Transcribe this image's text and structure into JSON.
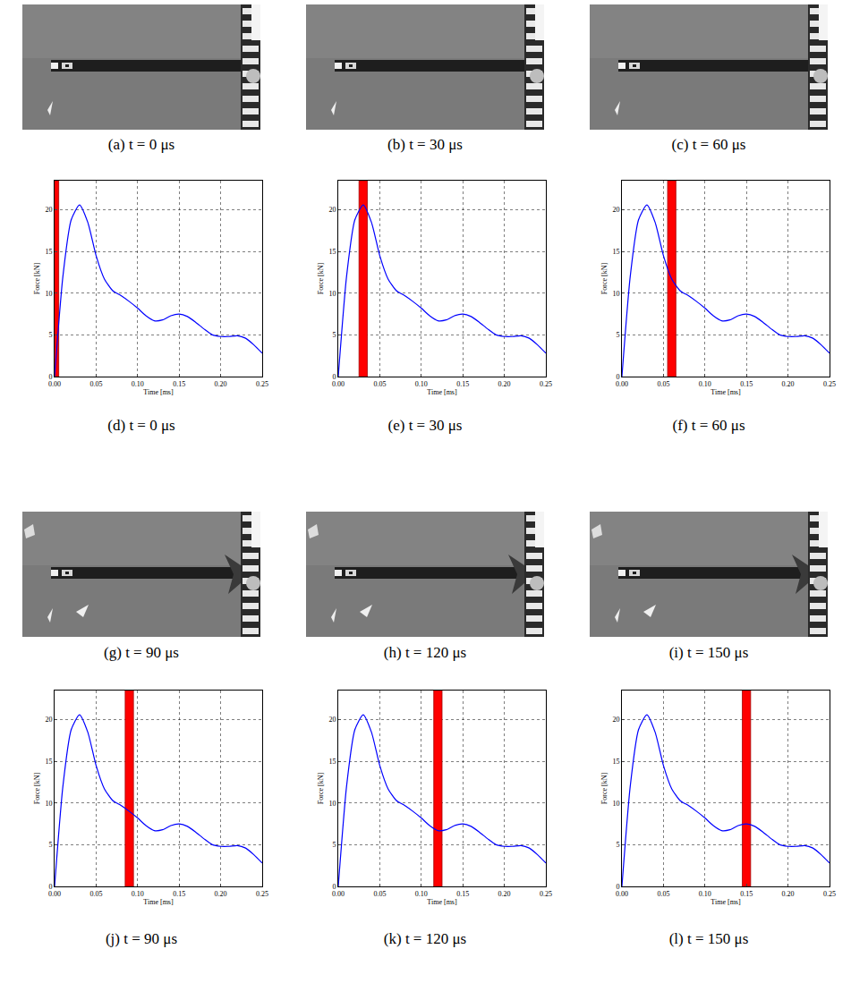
{
  "photos": [
    {
      "caption": "(a) t = 0 μs"
    },
    {
      "caption": "(b) t = 30 μs"
    },
    {
      "caption": "(c) t = 60 μs"
    },
    {
      "caption": "(g) t = 90 μs"
    },
    {
      "caption": "(h) t = 120 μs"
    },
    {
      "caption": "(i) t = 150 μs"
    }
  ],
  "chart_data": [
    {
      "type": "line",
      "caption": "(d) t = 0 μs",
      "x_label": "Time [ms]",
      "y_label": "Force [kN]",
      "x": [
        0,
        0.01,
        0.02,
        0.03,
        0.04,
        0.05,
        0.06,
        0.07,
        0.08,
        0.09,
        0.1,
        0.11,
        0.12,
        0.13,
        0.14,
        0.15,
        0.16,
        0.17,
        0.18,
        0.19,
        0.2,
        0.21,
        0.22,
        0.23,
        0.24,
        0.25
      ],
      "values": [
        0,
        12,
        18.8,
        20.6,
        18.5,
        14.5,
        11.7,
        10.3,
        9.7,
        9.0,
        8.2,
        7.3,
        6.7,
        6.8,
        7.3,
        7.5,
        7.2,
        6.5,
        5.7,
        5.0,
        4.8,
        4.8,
        4.9,
        4.6,
        3.8,
        2.8
      ],
      "color": "#0000ff",
      "xlim": [
        0,
        0.25
      ],
      "ylim": [
        0,
        23.5
      ],
      "xticks": [
        {
          "value": 0,
          "label": "0.00"
        },
        {
          "value": 0.05,
          "label": "0.05"
        },
        {
          "value": 0.1,
          "label": "0.10"
        },
        {
          "value": 0.15,
          "label": "0.15"
        },
        {
          "value": 0.2,
          "label": "0.20"
        },
        {
          "value": 0.25,
          "label": "0.25"
        }
      ],
      "yticks": [
        0,
        5,
        10,
        15,
        20
      ],
      "grid": true,
      "highlight": {
        "from": -0.005,
        "to": 0.005,
        "color": "#ff0000"
      }
    },
    {
      "type": "line",
      "caption": "(e) t = 30 μs",
      "x_label": "Time [ms]",
      "y_label": "Force [kN]",
      "x": [
        0,
        0.01,
        0.02,
        0.03,
        0.04,
        0.05,
        0.06,
        0.07,
        0.08,
        0.09,
        0.1,
        0.11,
        0.12,
        0.13,
        0.14,
        0.15,
        0.16,
        0.17,
        0.18,
        0.19,
        0.2,
        0.21,
        0.22,
        0.23,
        0.24,
        0.25
      ],
      "values": [
        0,
        12,
        18.8,
        20.6,
        18.5,
        14.5,
        11.7,
        10.3,
        9.7,
        9.0,
        8.2,
        7.3,
        6.7,
        6.8,
        7.3,
        7.5,
        7.2,
        6.5,
        5.7,
        5.0,
        4.8,
        4.8,
        4.9,
        4.6,
        3.8,
        2.8
      ],
      "color": "#0000ff",
      "xlim": [
        0,
        0.25
      ],
      "ylim": [
        0,
        23.5
      ],
      "xticks": [
        {
          "value": 0,
          "label": "0.00"
        },
        {
          "value": 0.05,
          "label": "0.05"
        },
        {
          "value": 0.1,
          "label": "0.10"
        },
        {
          "value": 0.15,
          "label": "0.15"
        },
        {
          "value": 0.2,
          "label": "0.20"
        },
        {
          "value": 0.25,
          "label": "0.25"
        }
      ],
      "yticks": [
        0,
        5,
        10,
        15,
        20
      ],
      "grid": true,
      "highlight": {
        "from": 0.025,
        "to": 0.035,
        "color": "#ff0000"
      }
    },
    {
      "type": "line",
      "caption": "(f) t = 60 μs",
      "x_label": "Time [ms]",
      "y_label": "Force [kN]",
      "x": [
        0,
        0.01,
        0.02,
        0.03,
        0.04,
        0.05,
        0.06,
        0.07,
        0.08,
        0.09,
        0.1,
        0.11,
        0.12,
        0.13,
        0.14,
        0.15,
        0.16,
        0.17,
        0.18,
        0.19,
        0.2,
        0.21,
        0.22,
        0.23,
        0.24,
        0.25
      ],
      "values": [
        0,
        12,
        18.8,
        20.6,
        18.5,
        14.5,
        11.7,
        10.3,
        9.7,
        9.0,
        8.2,
        7.3,
        6.7,
        6.8,
        7.3,
        7.5,
        7.2,
        6.5,
        5.7,
        5.0,
        4.8,
        4.8,
        4.9,
        4.6,
        3.8,
        2.8
      ],
      "color": "#0000ff",
      "xlim": [
        0,
        0.25
      ],
      "ylim": [
        0,
        23.5
      ],
      "xticks": [
        {
          "value": 0,
          "label": "0.00"
        },
        {
          "value": 0.05,
          "label": "0.05"
        },
        {
          "value": 0.1,
          "label": "0.10"
        },
        {
          "value": 0.15,
          "label": "0.15"
        },
        {
          "value": 0.2,
          "label": "0.20"
        },
        {
          "value": 0.25,
          "label": "0.25"
        }
      ],
      "yticks": [
        0,
        5,
        10,
        15,
        20
      ],
      "grid": true,
      "highlight": {
        "from": 0.055,
        "to": 0.065,
        "color": "#ff0000"
      }
    },
    {
      "type": "line",
      "caption": "(j) t = 90 μs",
      "x_label": "Time [ms]",
      "y_label": "Force [kN]",
      "x": [
        0,
        0.01,
        0.02,
        0.03,
        0.04,
        0.05,
        0.06,
        0.07,
        0.08,
        0.09,
        0.1,
        0.11,
        0.12,
        0.13,
        0.14,
        0.15,
        0.16,
        0.17,
        0.18,
        0.19,
        0.2,
        0.21,
        0.22,
        0.23,
        0.24,
        0.25
      ],
      "values": [
        0,
        12,
        18.8,
        20.6,
        18.5,
        14.5,
        11.7,
        10.3,
        9.7,
        9.0,
        8.2,
        7.3,
        6.7,
        6.8,
        7.3,
        7.5,
        7.2,
        6.5,
        5.7,
        5.0,
        4.8,
        4.8,
        4.9,
        4.6,
        3.8,
        2.8
      ],
      "color": "#0000ff",
      "xlim": [
        0,
        0.25
      ],
      "ylim": [
        0,
        23.5
      ],
      "xticks": [
        {
          "value": 0,
          "label": "0.00"
        },
        {
          "value": 0.05,
          "label": "0.05"
        },
        {
          "value": 0.1,
          "label": "0.10"
        },
        {
          "value": 0.15,
          "label": "0.15"
        },
        {
          "value": 0.2,
          "label": "0.20"
        },
        {
          "value": 0.25,
          "label": "0.25"
        }
      ],
      "yticks": [
        0,
        5,
        10,
        15,
        20
      ],
      "grid": true,
      "highlight": {
        "from": 0.085,
        "to": 0.095,
        "color": "#ff0000"
      }
    },
    {
      "type": "line",
      "caption": "(k) t = 120 μs",
      "x_label": "Time [ms]",
      "y_label": "Force [kN]",
      "x": [
        0,
        0.01,
        0.02,
        0.03,
        0.04,
        0.05,
        0.06,
        0.07,
        0.08,
        0.09,
        0.1,
        0.11,
        0.12,
        0.13,
        0.14,
        0.15,
        0.16,
        0.17,
        0.18,
        0.19,
        0.2,
        0.21,
        0.22,
        0.23,
        0.24,
        0.25
      ],
      "values": [
        0,
        12,
        18.8,
        20.6,
        18.5,
        14.5,
        11.7,
        10.3,
        9.7,
        9.0,
        8.2,
        7.3,
        6.7,
        6.8,
        7.3,
        7.5,
        7.2,
        6.5,
        5.7,
        5.0,
        4.8,
        4.8,
        4.9,
        4.6,
        3.8,
        2.8
      ],
      "color": "#0000ff",
      "xlim": [
        0,
        0.25
      ],
      "ylim": [
        0,
        23.5
      ],
      "xticks": [
        {
          "value": 0,
          "label": "0.00"
        },
        {
          "value": 0.05,
          "label": "0.05"
        },
        {
          "value": 0.1,
          "label": "0.10"
        },
        {
          "value": 0.15,
          "label": "0.15"
        },
        {
          "value": 0.2,
          "label": "0.20"
        },
        {
          "value": 0.25,
          "label": "0.25"
        }
      ],
      "yticks": [
        0,
        5,
        10,
        15,
        20
      ],
      "grid": true,
      "highlight": {
        "from": 0.115,
        "to": 0.125,
        "color": "#ff0000"
      }
    },
    {
      "type": "line",
      "caption": "(l) t = 150 μs",
      "x_label": "Time [ms]",
      "y_label": "Force [kN]",
      "x": [
        0,
        0.01,
        0.02,
        0.03,
        0.04,
        0.05,
        0.06,
        0.07,
        0.08,
        0.09,
        0.1,
        0.11,
        0.12,
        0.13,
        0.14,
        0.15,
        0.16,
        0.17,
        0.18,
        0.19,
        0.2,
        0.21,
        0.22,
        0.23,
        0.24,
        0.25
      ],
      "values": [
        0,
        12,
        18.8,
        20.6,
        18.5,
        14.5,
        11.7,
        10.3,
        9.7,
        9.0,
        8.2,
        7.3,
        6.7,
        6.8,
        7.3,
        7.5,
        7.2,
        6.5,
        5.7,
        5.0,
        4.8,
        4.8,
        4.9,
        4.6,
        3.8,
        2.8
      ],
      "color": "#0000ff",
      "xlim": [
        0,
        0.25
      ],
      "ylim": [
        0,
        23.5
      ],
      "xticks": [
        {
          "value": 0,
          "label": "0.00"
        },
        {
          "value": 0.05,
          "label": "0.05"
        },
        {
          "value": 0.1,
          "label": "0.10"
        },
        {
          "value": 0.15,
          "label": "0.15"
        },
        {
          "value": 0.2,
          "label": "0.20"
        },
        {
          "value": 0.25,
          "label": "0.25"
        }
      ],
      "yticks": [
        0,
        5,
        10,
        15,
        20
      ],
      "grid": true,
      "highlight": {
        "from": 0.145,
        "to": 0.155,
        "color": "#ff0000"
      }
    }
  ]
}
